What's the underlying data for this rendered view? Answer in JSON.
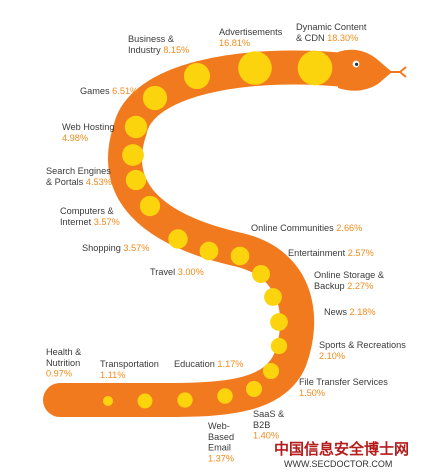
{
  "chart_data": {
    "type": "bubble",
    "series": [
      {
        "label": "Dynamic Content & CDN",
        "value": 18.3
      },
      {
        "label": "Advertisements",
        "value": 16.81
      },
      {
        "label": "Business & Industry",
        "value": 8.15
      },
      {
        "label": "Games",
        "value": 6.51
      },
      {
        "label": "Web Hosting",
        "value": 4.98
      },
      {
        "label": "Search Engines & Portals",
        "value": 4.53
      },
      {
        "label": "Computers & Internet",
        "value": 3.57
      },
      {
        "label": "Shopping",
        "value": 3.57
      },
      {
        "label": "Travel",
        "value": 3.0
      },
      {
        "label": "Online Communities",
        "value": 2.66
      },
      {
        "label": "Entertainment",
        "value": 2.57
      },
      {
        "label": "Online Storage & Backup",
        "value": 2.27
      },
      {
        "label": "News",
        "value": 2.18
      },
      {
        "label": "Sports & Recreations",
        "value": 2.1
      },
      {
        "label": "File Transfer Services",
        "value": 1.5
      },
      {
        "label": "SaaS & B2B",
        "value": 1.4
      },
      {
        "label": "Web-Based Email",
        "value": 1.37
      },
      {
        "label": "Education",
        "value": 1.17
      },
      {
        "label": "Transportation",
        "value": 1.11
      },
      {
        "label": "Health & Nutrition",
        "value": 0.97
      }
    ],
    "value_suffix": "%",
    "colors": {
      "snake_body": "#f27a1e",
      "dot": "#fbd40e",
      "label_text": "#3a3a3a",
      "percent_text": "#f28b1c"
    }
  },
  "watermark": {
    "title": "中国信息安全博士网",
    "url": "WWW.SECDOCTOR.COM"
  }
}
